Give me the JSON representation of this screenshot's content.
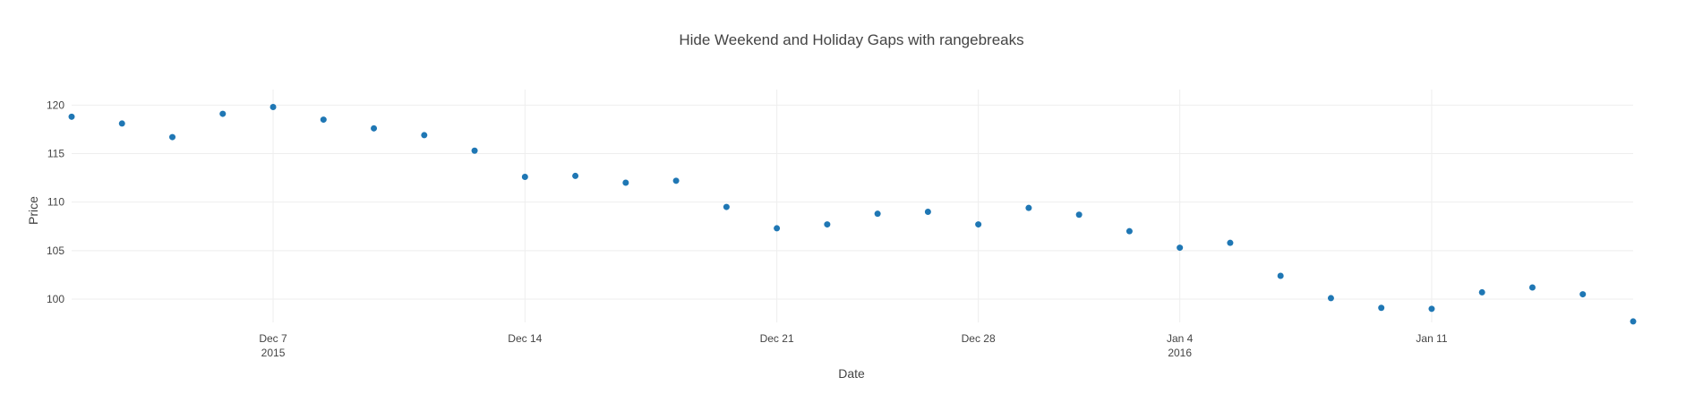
{
  "chart_data": {
    "type": "scatter",
    "title": "Hide Weekend and Holiday Gaps with rangebreaks",
    "xlabel": "Date",
    "ylabel": "Price",
    "x_axis_type": "date",
    "rangebreaks": [
      "weekends",
      "2015-12-25",
      "2016-01-01"
    ],
    "xrange": [
      "2015-12-01",
      "2016-01-15"
    ],
    "ylim": [
      97.6,
      121.6
    ],
    "grid": true,
    "marker_color": "#1f77b4",
    "yticks": [
      100,
      105,
      110,
      115,
      120
    ],
    "xticks": [
      {
        "date": "2015-12-07",
        "label": "Dec 7",
        "sublabel": "2015"
      },
      {
        "date": "2015-12-14",
        "label": "Dec 14",
        "sublabel": ""
      },
      {
        "date": "2015-12-21",
        "label": "Dec 21",
        "sublabel": ""
      },
      {
        "date": "2015-12-28",
        "label": "Dec 28",
        "sublabel": ""
      },
      {
        "date": "2016-01-04",
        "label": "Jan 4",
        "sublabel": "2016"
      },
      {
        "date": "2016-01-11",
        "label": "Jan 11",
        "sublabel": ""
      }
    ],
    "x": [
      "2015-12-01",
      "2015-12-02",
      "2015-12-03",
      "2015-12-04",
      "2015-12-07",
      "2015-12-08",
      "2015-12-09",
      "2015-12-10",
      "2015-12-11",
      "2015-12-14",
      "2015-12-15",
      "2015-12-16",
      "2015-12-17",
      "2015-12-18",
      "2015-12-21",
      "2015-12-22",
      "2015-12-23",
      "2015-12-24",
      "2015-12-28",
      "2015-12-29",
      "2015-12-30",
      "2015-12-31",
      "2016-01-04",
      "2016-01-05",
      "2016-01-06",
      "2016-01-07",
      "2016-01-08",
      "2016-01-11",
      "2016-01-12",
      "2016-01-13",
      "2016-01-14",
      "2016-01-15"
    ],
    "y": [
      118.8,
      118.1,
      116.7,
      119.1,
      119.8,
      118.5,
      117.6,
      116.9,
      115.3,
      112.6,
      112.7,
      112.0,
      112.2,
      109.5,
      107.3,
      107.7,
      108.8,
      109.0,
      107.7,
      109.4,
      108.7,
      107.0,
      105.3,
      105.8,
      102.4,
      100.1,
      99.1,
      99.0,
      100.7,
      101.2,
      100.5,
      97.7
    ]
  }
}
